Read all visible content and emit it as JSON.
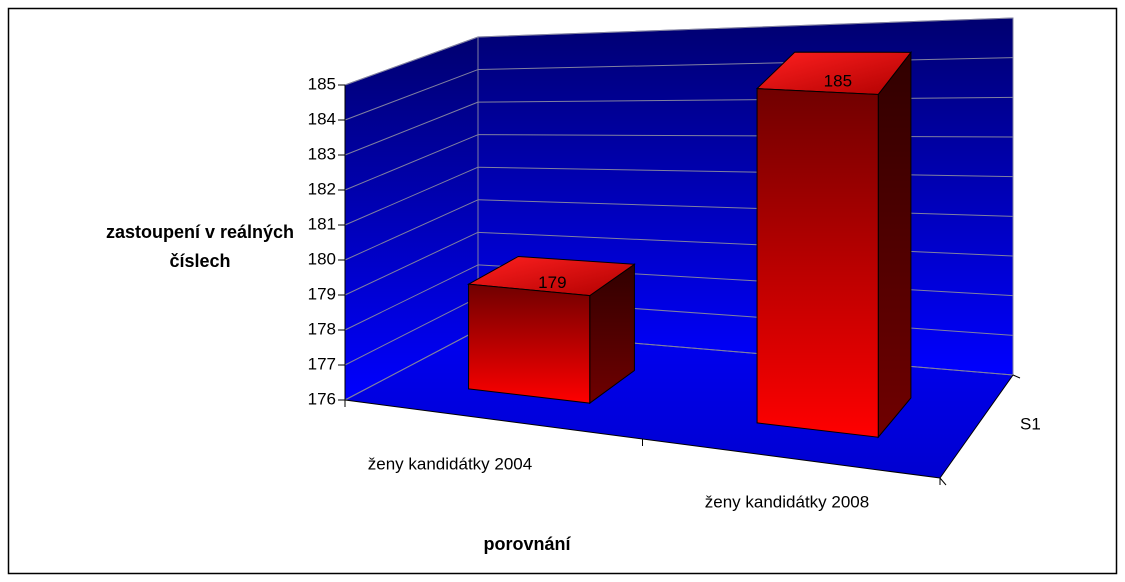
{
  "chart_data": {
    "type": "bar3d",
    "x_label": "porovnání",
    "y_label": "zastoupení v reálných číslech",
    "categories": [
      "ženy kandidátky 2004",
      "ženy kandidátky 2008"
    ],
    "series": [
      {
        "name": "S1",
        "color": "#ff0000",
        "values": [
          179,
          185
        ]
      }
    ],
    "ylim": [
      176,
      185
    ],
    "yticks": [
      176,
      177,
      178,
      179,
      180,
      181,
      182,
      183,
      184,
      185
    ],
    "grid": true
  }
}
